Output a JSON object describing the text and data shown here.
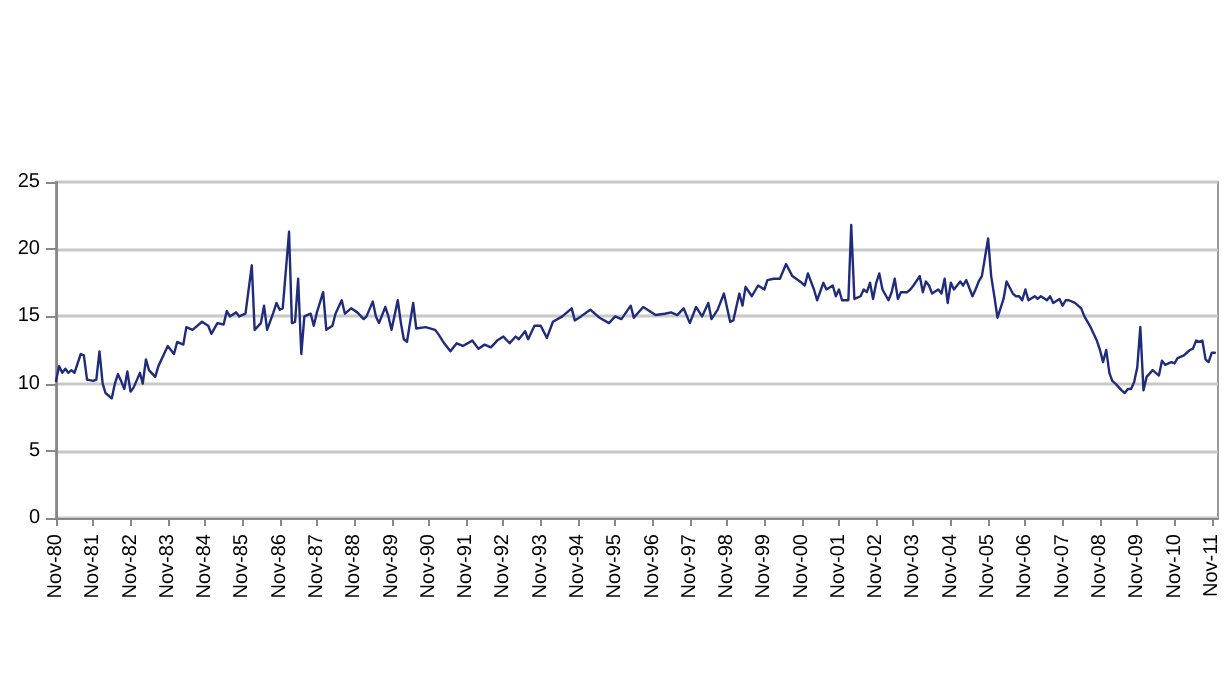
{
  "chart_data": {
    "type": "line",
    "grid": "y",
    "marker": "none",
    "line_style": "solid",
    "xlim": [
      "1980-11",
      "2012-01"
    ],
    "ylim": [
      0,
      25
    ],
    "yticks": [
      0,
      5,
      10,
      15,
      20,
      25
    ],
    "xticks": [
      {
        "value": "1980-11",
        "label": "Nov-80"
      },
      {
        "value": "1981-11",
        "label": "Nov-81"
      },
      {
        "value": "1982-11",
        "label": "Nov-82"
      },
      {
        "value": "1983-11",
        "label": "Nov-83"
      },
      {
        "value": "1984-11",
        "label": "Nov-84"
      },
      {
        "value": "1985-11",
        "label": "Nov-85"
      },
      {
        "value": "1986-11",
        "label": "Nov-86"
      },
      {
        "value": "1987-11",
        "label": "Nov-87"
      },
      {
        "value": "1988-11",
        "label": "Nov-88"
      },
      {
        "value": "1989-11",
        "label": "Nov-89"
      },
      {
        "value": "1990-11",
        "label": "Nov-90"
      },
      {
        "value": "1991-11",
        "label": "Nov-91"
      },
      {
        "value": "1992-11",
        "label": "Nov-92"
      },
      {
        "value": "1993-11",
        "label": "Nov-93"
      },
      {
        "value": "1994-11",
        "label": "Nov-94"
      },
      {
        "value": "1995-11",
        "label": "Nov-95"
      },
      {
        "value": "1996-11",
        "label": "Nov-96"
      },
      {
        "value": "1997-11",
        "label": "Nov-97"
      },
      {
        "value": "1998-11",
        "label": "Nov-98"
      },
      {
        "value": "1999-11",
        "label": "Nov-99"
      },
      {
        "value": "2000-11",
        "label": "Nov-00"
      },
      {
        "value": "2001-11",
        "label": "Nov-01"
      },
      {
        "value": "2002-11",
        "label": "Nov-02"
      },
      {
        "value": "2003-11",
        "label": "Nov-03"
      },
      {
        "value": "2004-11",
        "label": "Nov-04"
      },
      {
        "value": "2005-11",
        "label": "Nov-05"
      },
      {
        "value": "2006-11",
        "label": "Nov-06"
      },
      {
        "value": "2007-11",
        "label": "Nov-07"
      },
      {
        "value": "2008-11",
        "label": "Nov-08"
      },
      {
        "value": "2009-11",
        "label": "Nov-09"
      },
      {
        "value": "2010-11",
        "label": "Nov-10"
      },
      {
        "value": "2011-11",
        "label": "Nov-11"
      }
    ],
    "series": [
      {
        "color": "#1f2b7b",
        "x": [
          "1980-11",
          "1980-12",
          "1981-01",
          "1981-02",
          "1981-03",
          "1981-04",
          "1981-05",
          "1981-07",
          "1981-08",
          "1981-09",
          "1981-11",
          "1981-12",
          "1982-01",
          "1982-02",
          "1982-03",
          "1982-05",
          "1982-06",
          "1982-07",
          "1982-08",
          "1982-09",
          "1982-10",
          "1982-11",
          "1982-12",
          "1983-02",
          "1983-03",
          "1983-04",
          "1983-05",
          "1983-07",
          "1983-08",
          "1983-10",
          "1983-11",
          "1984-01",
          "1984-02",
          "1984-04",
          "1984-05",
          "1984-07",
          "1984-08",
          "1984-10",
          "1984-12",
          "1985-01",
          "1985-03",
          "1985-05",
          "1985-06",
          "1985-07",
          "1985-09",
          "1985-10",
          "1985-12",
          "1986-02",
          "1986-03",
          "1986-05",
          "1986-06",
          "1986-07",
          "1986-09",
          "1986-10",
          "1986-11",
          "1986-12",
          "1987-02",
          "1987-03",
          "1987-04",
          "1987-05",
          "1987-06",
          "1987-07",
          "1987-09",
          "1987-10",
          "1987-11",
          "1988-01",
          "1988-02",
          "1988-04",
          "1988-05",
          "1988-07",
          "1988-08",
          "1988-10",
          "1988-12",
          "1989-02",
          "1989-03",
          "1989-05",
          "1989-06",
          "1989-07",
          "1989-09",
          "1989-10",
          "1989-11",
          "1990-01",
          "1990-02",
          "1990-03",
          "1990-04",
          "1990-06",
          "1990-07",
          "1990-10",
          "1991-01",
          "1991-02",
          "1991-04",
          "1991-06",
          "1991-08",
          "1991-10",
          "1992-01",
          "1992-03",
          "1992-05",
          "1992-07",
          "1992-09",
          "1992-11",
          "1993-01",
          "1993-03",
          "1993-04",
          "1993-06",
          "1993-07",
          "1993-09",
          "1993-11",
          "1994-01",
          "1994-03",
          "1994-06",
          "1994-09",
          "1994-10",
          "1994-12",
          "1995-03",
          "1995-06",
          "1995-09",
          "1995-11",
          "1996-01",
          "1996-04",
          "1996-05",
          "1996-08",
          "1996-10",
          "1996-12",
          "1997-03",
          "1997-05",
          "1997-07",
          "1997-09",
          "1997-11",
          "1998-01",
          "1998-03",
          "1998-05",
          "1998-06",
          "1998-08",
          "1998-10",
          "1998-12",
          "1999-01",
          "1999-03",
          "1999-04",
          "1999-05",
          "1999-07",
          "1999-09",
          "1999-11",
          "1999-12",
          "2000-02",
          "2000-04",
          "2000-06",
          "2000-08",
          "2000-11",
          "2000-12",
          "2001-01",
          "2001-03",
          "2001-04",
          "2001-06",
          "2001-07",
          "2001-09",
          "2001-10",
          "2001-11",
          "2001-12",
          "2002-02",
          "2002-03",
          "2002-04",
          "2002-06",
          "2002-07",
          "2002-08",
          "2002-09",
          "2002-10",
          "2002-11",
          "2002-12",
          "2003-01",
          "2003-03",
          "2003-04",
          "2003-05",
          "2003-06",
          "2003-07",
          "2003-09",
          "2003-10",
          "2003-11",
          "2004-01",
          "2004-02",
          "2004-03",
          "2004-04",
          "2004-05",
          "2004-07",
          "2004-08",
          "2004-09",
          "2004-10",
          "2004-11",
          "2004-12",
          "2005-02",
          "2005-03",
          "2005-04",
          "2005-06",
          "2005-07",
          "2005-08",
          "2005-09",
          "2005-11",
          "2005-12",
          "2006-01",
          "2006-02",
          "2006-04",
          "2006-05",
          "2006-07",
          "2006-08",
          "2006-09",
          "2006-10",
          "2006-11",
          "2006-12",
          "2007-02",
          "2007-03",
          "2007-04",
          "2007-06",
          "2007-07",
          "2007-08",
          "2007-10",
          "2007-11",
          "2007-12",
          "2008-01",
          "2008-03",
          "2008-05",
          "2008-06",
          "2008-08",
          "2008-10",
          "2008-11",
          "2008-12",
          "2009-01",
          "2009-02",
          "2009-03",
          "2009-04",
          "2009-06",
          "2009-07",
          "2009-08",
          "2009-09",
          "2009-10",
          "2009-11",
          "2009-12",
          "2010-01",
          "2010-02",
          "2010-04",
          "2010-06",
          "2010-07",
          "2010-08",
          "2010-10",
          "2010-11",
          "2010-12",
          "2011-02",
          "2011-04",
          "2011-05",
          "2011-06",
          "2011-07",
          "2011-08",
          "2011-09",
          "2011-10",
          "2011-11",
          "2011-12"
        ],
        "values": [
          10.2,
          11.3,
          10.8,
          11.1,
          10.8,
          11.0,
          10.8,
          12.2,
          12.1,
          10.3,
          10.2,
          10.3,
          12.4,
          10.0,
          9.3,
          8.9,
          10.0,
          10.7,
          10.2,
          9.6,
          10.9,
          9.4,
          9.7,
          10.8,
          10.0,
          11.8,
          11.0,
          10.5,
          11.3,
          12.3,
          12.8,
          12.2,
          13.1,
          12.9,
          14.2,
          14.0,
          14.2,
          14.6,
          14.3,
          13.7,
          14.5,
          14.4,
          15.4,
          15.0,
          15.3,
          15.0,
          15.2,
          18.8,
          14.0,
          14.5,
          15.8,
          14.0,
          15.3,
          16.0,
          15.5,
          15.6,
          21.3,
          14.5,
          14.6,
          17.8,
          12.2,
          15.0,
          15.2,
          14.3,
          15.3,
          16.8,
          14.0,
          14.3,
          15.2,
          16.2,
          15.2,
          15.6,
          15.3,
          14.8,
          15.0,
          16.1,
          15.0,
          14.5,
          15.7,
          15.0,
          14.0,
          16.2,
          14.5,
          13.3,
          13.1,
          16.0,
          14.1,
          14.2,
          14.0,
          13.7,
          13.0,
          12.4,
          13.0,
          12.8,
          13.2,
          12.6,
          12.9,
          12.7,
          13.2,
          13.5,
          13.0,
          13.5,
          13.3,
          13.9,
          13.3,
          14.3,
          14.3,
          13.4,
          14.6,
          15.0,
          15.6,
          14.7,
          15.0,
          15.5,
          14.9,
          14.5,
          15.0,
          14.8,
          15.8,
          14.9,
          15.7,
          15.4,
          15.1,
          15.2,
          15.3,
          15.1,
          15.6,
          14.5,
          15.7,
          15.0,
          16.0,
          14.8,
          15.5,
          16.7,
          14.6,
          14.7,
          16.7,
          15.8,
          17.2,
          16.5,
          17.3,
          17.0,
          17.7,
          17.8,
          17.8,
          18.9,
          18.0,
          17.5,
          17.3,
          18.2,
          17.0,
          16.2,
          17.5,
          17.0,
          17.3,
          16.5,
          17.0,
          16.2,
          16.2,
          21.8,
          16.3,
          16.5,
          17.0,
          16.8,
          17.5,
          16.3,
          17.5,
          18.2,
          17.0,
          16.2,
          16.8,
          17.8,
          16.3,
          16.8,
          16.8,
          17.0,
          17.3,
          18.0,
          16.8,
          17.6,
          17.3,
          16.7,
          17.0,
          16.7,
          17.8,
          16.0,
          17.5,
          17.0,
          17.6,
          17.3,
          17.7,
          16.5,
          17.0,
          17.6,
          18.0,
          20.8,
          18.0,
          16.5,
          14.9,
          16.3,
          17.6,
          16.7,
          16.5,
          16.5,
          16.2,
          17.0,
          16.2,
          16.5,
          16.3,
          16.5,
          16.2,
          16.5,
          16.0,
          16.3,
          15.8,
          16.2,
          16.2,
          16.0,
          15.6,
          15.0,
          14.2,
          13.2,
          12.5,
          11.6,
          12.5,
          10.8,
          10.2,
          10.0,
          9.5,
          9.3,
          9.6,
          9.6,
          10.1,
          11.2,
          14.2,
          9.5,
          10.5,
          11.0,
          10.6,
          11.7,
          11.4,
          11.6,
          11.5,
          11.9,
          12.1,
          12.5,
          12.6,
          13.2,
          13.1,
          13.2,
          11.8,
          11.6,
          12.3,
          12.3
        ]
      }
    ]
  }
}
